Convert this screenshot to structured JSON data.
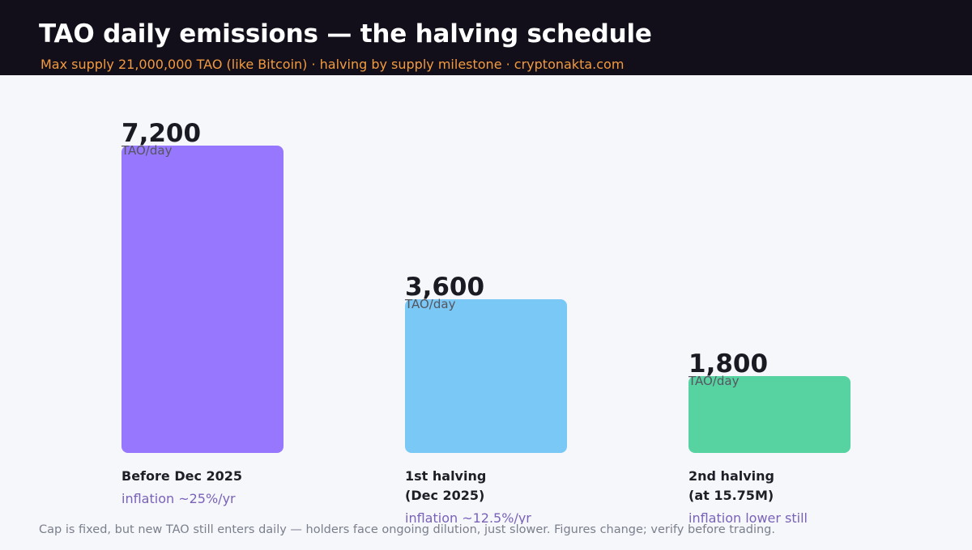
{
  "header": {
    "title": "TAO daily emissions — the halving schedule",
    "subtitle": "Max supply 21,000,000 TAO (like Bitcoin) · halving by supply milestone · cryptonakta.com"
  },
  "chart_data": {
    "type": "bar",
    "title": "TAO daily emissions — the halving schedule",
    "subtitle": "Max supply 21,000,000 TAO (like Bitcoin) · halving by supply milestone · cryptonakta.com",
    "unit": "TAO/day",
    "grid": false,
    "categories": [
      {
        "label_lines": [
          "Before Dec 2025"
        ],
        "note": "inflation ~25%/yr"
      },
      {
        "label_lines": [
          "1st halving",
          "(Dec 2025)"
        ],
        "note": "inflation ~12.5%/yr"
      },
      {
        "label_lines": [
          "2nd halving",
          "(at 15.75M)"
        ],
        "note": "inflation lower still"
      }
    ],
    "values": [
      7200,
      3600,
      1800
    ],
    "value_labels": [
      "7,200",
      "3,600",
      "1,800"
    ],
    "colors": [
      "#9777fd",
      "#7ac8f5",
      "#57d3a2"
    ]
  },
  "footer": {
    "text": "Cap is fixed, but new TAO still enters daily — holders face ongoing dilution, just slower. Figures change; verify before trading."
  }
}
